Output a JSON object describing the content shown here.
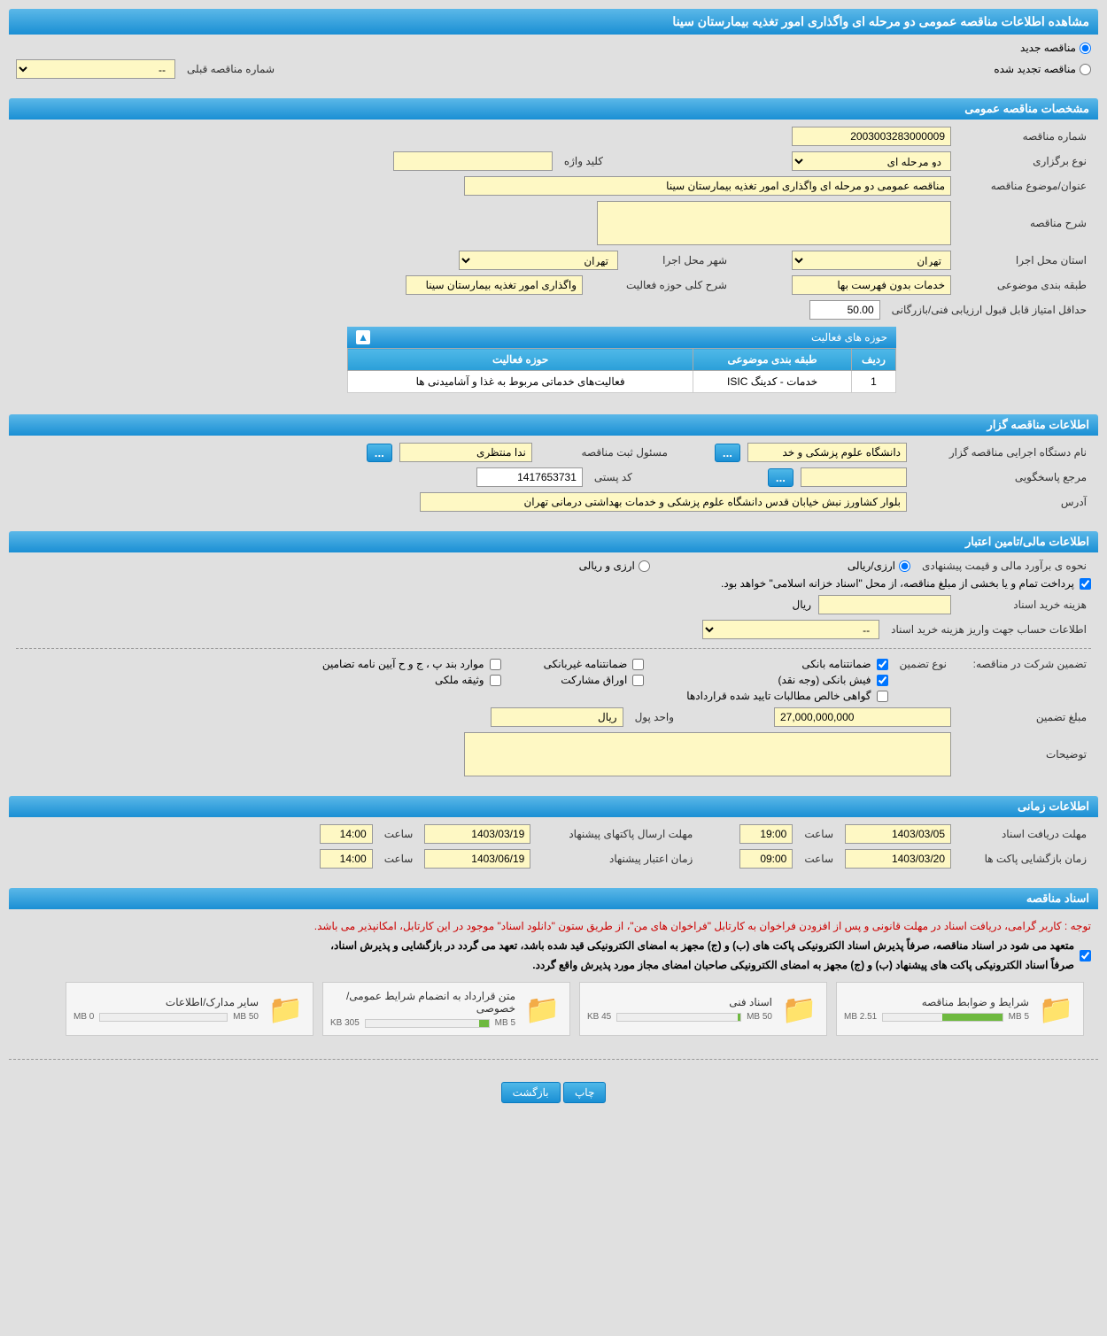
{
  "title": "مشاهده اطلاعات مناقصه عمومی دو مرحله ای واگذاری امور تغذیه بیمارستان سینا",
  "radio": {
    "new_tender": "مناقصه جدید",
    "renewed_tender": "مناقصه تجدید شده"
  },
  "prev_number": {
    "label": "شماره مناقصه قبلی",
    "value": "--"
  },
  "sections": {
    "general": "مشخصات مناقصه عمومی",
    "organizer": "اطلاعات مناقصه گزار",
    "financial": "اطلاعات مالی/تامین اعتبار",
    "timing": "اطلاعات زمانی",
    "documents": "اسناد مناقصه"
  },
  "general": {
    "tender_number": {
      "label": "شماره مناقصه",
      "value": "2003003283000009"
    },
    "holding_type": {
      "label": "نوع برگزاری",
      "value": "دو مرحله ای"
    },
    "keyword": {
      "label": "کلید واژه",
      "value": ""
    },
    "subject": {
      "label": "عنوان/موضوع مناقصه",
      "value": "مناقصه عمومی دو مرحله ای واگذاری امور تغذیه بیمارستان سینا"
    },
    "description": {
      "label": "شرح مناقصه",
      "value": ""
    },
    "province": {
      "label": "استان محل اجرا",
      "value": "تهران"
    },
    "city": {
      "label": "شهر محل اجرا",
      "value": "تهران"
    },
    "topic_class": {
      "label": "طبقه بندی موضوعی",
      "value": "خدمات بدون فهرست بها"
    },
    "activity_scope": {
      "label": "شرح کلی حوزه فعالیت",
      "value": "واگذاری امور تغذیه بیمارستان سینا"
    },
    "min_score": {
      "label": "حداقل امتیاز قابل قبول ارزیابی فنی/بازرگانی",
      "value": "50.00"
    }
  },
  "activity_table": {
    "title": "حوزه های فعالیت",
    "headers": {
      "row": "ردیف",
      "class": "طبقه بندی موضوعی",
      "scope": "حوزه فعالیت"
    },
    "rows": [
      {
        "num": "1",
        "class": "خدمات - کدینگ ISIC",
        "scope": "فعالیت‌های خدماتی مربوط به غذا و آشامیدنی ها"
      }
    ]
  },
  "organizer": {
    "agency": {
      "label": "نام دستگاه اجرایی مناقصه گزار",
      "value": "دانشگاه علوم پزشکی و خد"
    },
    "registrar": {
      "label": "مسئول ثبت مناقصه",
      "value": "ندا منتظری"
    },
    "contact": {
      "label": "مرجع پاسخگویی",
      "value": ""
    },
    "postal": {
      "label": "کد پستی",
      "value": "1417653731"
    },
    "address": {
      "label": "آدرس",
      "value": "بلوار کشاورز نبش خیابان قدس دانشگاه علوم پزشکی و خدمات بهداشتی درمانی تهران"
    }
  },
  "financial": {
    "estimate_method": {
      "label": "نحوه ی برآورد مالی و قیمت پیشنهادی",
      "rial": "ارزی/ریالی",
      "currency": "ارزی و ریالی"
    },
    "treasury_note": "پرداخت تمام و یا بخشی از مبلغ مناقصه، از محل \"اسناد خزانه اسلامی\" خواهد بود.",
    "doc_cost": {
      "label": "هزینه خرید اسناد",
      "unit": "ریال",
      "value": ""
    },
    "account_info": {
      "label": "اطلاعات حساب جهت واریز هزینه خرید اسناد",
      "value": "--"
    },
    "guarantee_label": "تضمین شرکت در مناقصه:",
    "guarantee_type_label": "نوع تضمین",
    "guarantee_types": {
      "bank_guarantee": "ضمانتنامه بانکی",
      "nonbank_guarantee": "ضمانتنامه غیربانکی",
      "clauses": "موارد بند پ ، ج و ح آیین نامه تضامین",
      "bank_receipt": "فیش بانکی (وجه نقد)",
      "participation": "اوراق مشارکت",
      "property": "وثیقه ملکی",
      "certificate": "گواهی خالص مطالبات تایید شده قراردادها"
    },
    "guarantee_amount": {
      "label": "مبلغ تضمین",
      "value": "27,000,000,000"
    },
    "currency_unit": {
      "label": "واحد پول",
      "value": "ریال"
    },
    "notes": {
      "label": "توضیحات",
      "value": ""
    }
  },
  "timing": {
    "doc_deadline": {
      "label": "مهلت دریافت اسناد",
      "date": "1403/03/05",
      "time_label": "ساعت",
      "time": "19:00"
    },
    "packet_deadline": {
      "label": "مهلت ارسال پاکتهای پیشنهاد",
      "date": "1403/03/19",
      "time_label": "ساعت",
      "time": "14:00"
    },
    "opening": {
      "label": "زمان بازگشایی پاکت ها",
      "date": "1403/03/20",
      "time_label": "ساعت",
      "time": "09:00"
    },
    "validity": {
      "label": "زمان اعتبار پیشنهاد",
      "date": "1403/06/19",
      "time_label": "ساعت",
      "time": "14:00"
    }
  },
  "docs_notes": {
    "red": "توجه : کاربر گرامی، دریافت اسناد در مهلت قانونی و پس از افزودن فراخوان به کارتابل \"فراخوان های من\"، از طریق ستون \"دانلود اسناد\" موجود در این کارتابل، امکانپذیر می باشد.",
    "black1": "متعهد می شود در اسناد مناقصه، صرفاً پذیرش اسناد الکترونیکی پاکت های (ب) و (ج) مجهز به امضای الکترونیکی قید شده باشد، تعهد می گردد در بازگشایی و پذیرش اسناد،",
    "black2": "صرفاً اسناد الکترونیکی پاکت های پیشنهاد (ب) و (ج) مجهز به امضای الکترونیکی صاحبان امضای مجاز مورد پذیرش واقع گردد."
  },
  "files": [
    {
      "name": "شرایط و ضوابط مناقصه",
      "size": "2.51 MB",
      "max": "5 MB",
      "pct": 50
    },
    {
      "name": "اسناد فنی",
      "size": "45 KB",
      "max": "50 MB",
      "pct": 2
    },
    {
      "name": "متن قرارداد به انضمام شرایط عمومی/خصوصی",
      "size": "305 KB",
      "max": "5 MB",
      "pct": 8
    },
    {
      "name": "سایر مدارک/اطلاعات",
      "size": "0 MB",
      "max": "50 MB",
      "pct": 0
    }
  ],
  "buttons": {
    "print": "چاپ",
    "back": "بازگشت",
    "ellipsis": "..."
  }
}
